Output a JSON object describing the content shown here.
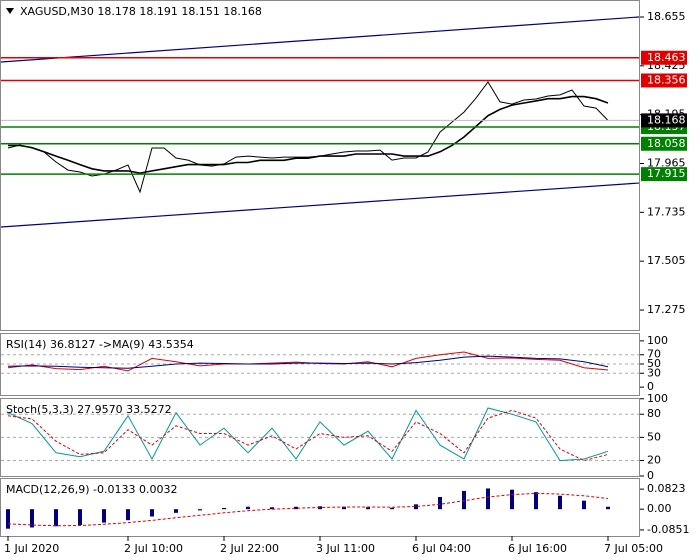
{
  "chart_data": [
    {
      "type": "line",
      "title": "XAGUSD,M30  18.178 18.191 18.151 18.168",
      "categories": [
        "1 Jul 2020",
        null,
        null,
        null,
        null,
        null,
        null,
        null,
        null,
        null,
        "2 Jul 10:00",
        null,
        null,
        null,
        null,
        null,
        null,
        null,
        "2 Jul 22:00",
        null,
        null,
        null,
        null,
        null,
        null,
        null,
        "3 Jul 11:00",
        null,
        null,
        null,
        null,
        null,
        null,
        null,
        "6 Jul 04:00",
        null,
        null,
        null,
        null,
        null,
        null,
        null,
        "6 Jul 16:00",
        null,
        null,
        null,
        null,
        null,
        null,
        null,
        "7 Jul 05:00"
      ],
      "series": [
        {
          "color": "#000000",
          "width": 1,
          "values": [
            18.038,
            18.052,
            18.038,
            18.019,
            17.972,
            17.934,
            17.925,
            17.906,
            17.915,
            17.934,
            17.958,
            17.831,
            18.038,
            18.038,
            17.991,
            17.981,
            17.958,
            17.953,
            17.963,
            17.995,
            18.0,
            17.995,
            17.991,
            17.995,
            17.995,
            17.995,
            18.0,
            18.01,
            18.019,
            18.024,
            18.024,
            18.028,
            17.981,
            17.991,
            17.991,
            18.019,
            18.113,
            18.16,
            18.207,
            18.273,
            18.349,
            18.255,
            18.245,
            18.264,
            18.269,
            18.283,
            18.288,
            18.311,
            18.236,
            18.226,
            18.168
          ]
        },
        {
          "color": "#000000",
          "width": 1.6,
          "values": [
            18.05,
            18.05,
            18.04,
            18.02,
            18.0,
            17.98,
            17.96,
            17.94,
            17.93,
            17.93,
            17.93,
            17.92,
            17.93,
            17.94,
            17.95,
            17.96,
            17.96,
            17.96,
            17.96,
            17.97,
            17.97,
            17.98,
            17.98,
            17.98,
            17.99,
            17.99,
            18.0,
            18.0,
            18.0,
            18.01,
            18.01,
            18.01,
            18.01,
            18.0,
            18.0,
            18.0,
            18.02,
            18.05,
            18.09,
            18.14,
            18.19,
            18.22,
            18.24,
            18.25,
            18.26,
            18.27,
            18.27,
            18.28,
            18.28,
            18.27,
            18.25
          ]
        }
      ],
      "channels": [
        {
          "color": "#000080",
          "values": [
            18.443,
            18.655
          ]
        },
        {
          "color": "#000080",
          "values": [
            17.666,
            17.873
          ]
        }
      ],
      "levels": [
        {
          "value": 18.463,
          "color": "#e00000"
        },
        {
          "value": 18.356,
          "color": "#e00000"
        },
        {
          "value": 18.137,
          "color": "#008000"
        },
        {
          "value": 18.058,
          "color": "#008000"
        },
        {
          "value": 17.915,
          "color": "#008000"
        }
      ],
      "last": 18.168,
      "ylim": [
        17.181,
        18.735
      ],
      "yticks": [
        18.655,
        18.425,
        18.195,
        17.965,
        17.735,
        17.505,
        17.275
      ]
    },
    {
      "type": "line",
      "title": "RSI(14) 36.8127  ->MA(9) 43.5354",
      "series": [
        {
          "color": "#e00000",
          "values": [
            42,
            48,
            40,
            38,
            45,
            35,
            62,
            55,
            46,
            50,
            50,
            52,
            54,
            51,
            50,
            55,
            44,
            62,
            70,
            76,
            62,
            63,
            60,
            58,
            42,
            37
          ]
        },
        {
          "color": "#000080",
          "values": [
            45,
            46,
            45,
            43,
            42,
            41,
            45,
            50,
            52,
            51,
            50,
            50,
            52,
            52,
            51,
            52,
            50,
            53,
            58,
            65,
            67,
            65,
            62,
            61,
            55,
            44
          ]
        }
      ],
      "levels": [
        70,
        50,
        30
      ],
      "ylim": [
        -17,
        117
      ],
      "yticks": [
        100,
        70,
        50,
        30,
        0
      ]
    },
    {
      "type": "line",
      "title": "Stoch(5,3,3) 27.9570 33.5272",
      "series": [
        {
          "color": "#009999",
          "values": [
            82,
            68,
            30,
            25,
            32,
            78,
            22,
            82,
            40,
            62,
            30,
            62,
            22,
            70,
            40,
            58,
            22,
            85,
            40,
            22,
            88,
            80,
            70,
            20,
            22,
            32
          ]
        },
        {
          "color": "#e00000",
          "dashed": true,
          "values": [
            78,
            74,
            45,
            28,
            30,
            60,
            40,
            65,
            55,
            55,
            40,
            52,
            35,
            55,
            50,
            52,
            32,
            70,
            55,
            30,
            75,
            85,
            75,
            35,
            20,
            28
          ]
        }
      ],
      "levels": [
        80,
        50,
        20
      ],
      "ylim": [
        0,
        101
      ],
      "yticks": [
        100,
        80,
        50,
        20,
        0
      ]
    },
    {
      "type": "line",
      "title": "MACD(12,26,9) -0.0133 0.0032",
      "series": [
        {
          "color": "#000080",
          "bars": true,
          "values": [
            -0.08,
            -0.075,
            -0.07,
            -0.065,
            -0.055,
            -0.045,
            -0.03,
            -0.015,
            -0.005,
            0.005,
            0.01,
            0.008,
            0.01,
            0.012,
            0.01,
            0.008,
            0.006,
            0.02,
            0.05,
            0.075,
            0.085,
            0.08,
            0.07,
            0.055,
            0.035,
            0.01
          ]
        },
        {
          "color": "#e00000",
          "dashed": true,
          "values": [
            -0.06,
            -0.065,
            -0.068,
            -0.067,
            -0.062,
            -0.055,
            -0.046,
            -0.035,
            -0.025,
            -0.015,
            -0.006,
            0.0,
            0.004,
            0.007,
            0.009,
            0.009,
            0.008,
            0.011,
            0.02,
            0.035,
            0.05,
            0.06,
            0.065,
            0.062,
            0.055,
            0.044
          ]
        }
      ],
      "ylim": [
        -0.11,
        0.128
      ],
      "yticks": [
        0.0823,
        {
          "value": 0,
          "label": "0.00"
        },
        -0.0851
      ]
    }
  ]
}
